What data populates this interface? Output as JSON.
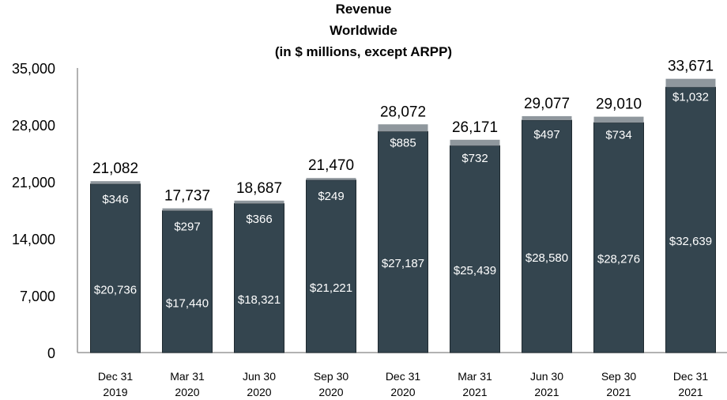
{
  "chart_data": {
    "type": "bar",
    "stacked": true,
    "title": [
      "Revenue",
      "Worldwide",
      "(in $ millions, except ARPP)"
    ],
    "categories": [
      [
        "Dec 31",
        "2019"
      ],
      [
        "Mar 31",
        "2020"
      ],
      [
        "Jun 30",
        "2020"
      ],
      [
        "Sep 30",
        "2020"
      ],
      [
        "Dec 31",
        "2020"
      ],
      [
        "Mar 31",
        "2021"
      ],
      [
        "Jun 30",
        "2021"
      ],
      [
        "Sep 30",
        "2021"
      ],
      [
        "Dec 31",
        "2021"
      ]
    ],
    "series": [
      {
        "values": [
          20736,
          17440,
          18321,
          21221,
          27187,
          25439,
          28580,
          28276,
          32639
        ],
        "labels": [
          "$20,736",
          "$17,440",
          "$18,321",
          "$21,221",
          "$27,187",
          "$25,439",
          "$28,580",
          "$28,276",
          "$32,639"
        ],
        "color": "#34454f"
      },
      {
        "values": [
          346,
          297,
          366,
          249,
          885,
          732,
          497,
          734,
          1032
        ],
        "labels": [
          "$346",
          "$297",
          "$366",
          "$249",
          "$885",
          "$732",
          "$497",
          "$734",
          "$1,032"
        ],
        "color": "#8f979d"
      }
    ],
    "totals": [
      "21,082",
      "17,737",
      "18,687",
      "21,470",
      "28,072",
      "26,171",
      "29,077",
      "29,010",
      "33,671"
    ],
    "ylim": [
      0,
      35000
    ],
    "yticks": [
      "0",
      "7,000",
      "14,000",
      "21,000",
      "28,000",
      "35,000"
    ],
    "grid": false,
    "legend": "none"
  }
}
